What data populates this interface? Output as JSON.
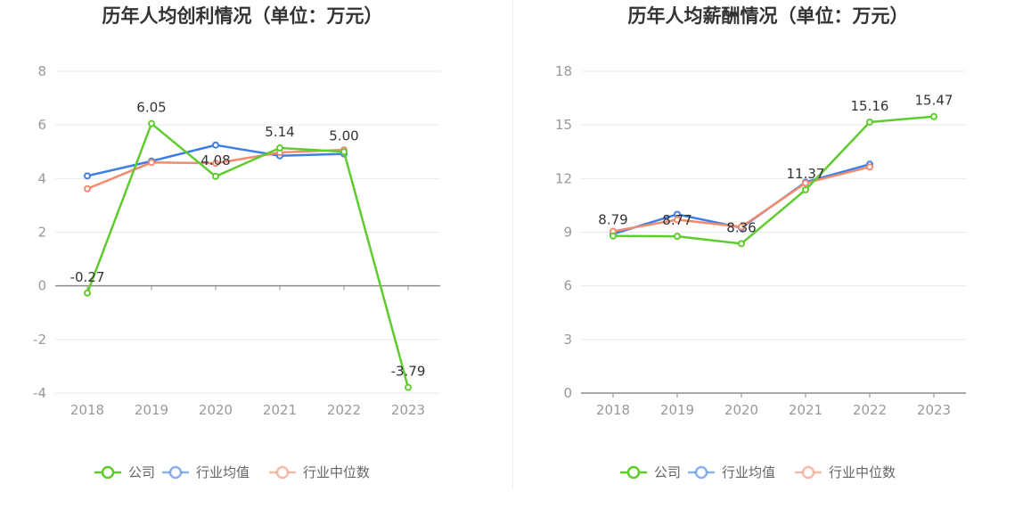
{
  "legend": {
    "items": [
      {
        "label": "公司",
        "color": "#5fcc2e"
      },
      {
        "label": "行业均值",
        "color": "#3d7fe6"
      },
      {
        "label": "行业中位数",
        "color": "#f28c6f"
      }
    ]
  },
  "chart_data": [
    {
      "type": "line",
      "title": "历年人均创利情况（单位：万元）",
      "categories": [
        "2018",
        "2019",
        "2020",
        "2021",
        "2022",
        "2023"
      ],
      "ylim": [
        -4,
        8
      ],
      "yticks": [
        8,
        6,
        4,
        2,
        0,
        -2,
        -4
      ],
      "series": [
        {
          "name": "公司",
          "color": "#5fcc2e",
          "values": [
            -0.27,
            6.05,
            4.08,
            5.14,
            5.0,
            -3.79
          ],
          "labels": [
            "-0.27",
            "6.05",
            "4.08",
            "5.14",
            "5.00",
            "-3.79"
          ]
        },
        {
          "name": "行业均值",
          "color": "#3d7fe6",
          "values": [
            4.1,
            4.65,
            5.25,
            4.85,
            4.92,
            null
          ]
        },
        {
          "name": "行业中位数",
          "color": "#f28c6f",
          "values": [
            3.62,
            4.6,
            4.57,
            4.97,
            5.07,
            null
          ]
        }
      ]
    },
    {
      "type": "line",
      "title": "历年人均薪酬情况（单位：万元）",
      "categories": [
        "2018",
        "2019",
        "2020",
        "2021",
        "2022",
        "2023"
      ],
      "ylim": [
        0,
        18
      ],
      "yticks": [
        18,
        15,
        12,
        9,
        6,
        3,
        0
      ],
      "series": [
        {
          "name": "公司",
          "color": "#5fcc2e",
          "values": [
            8.79,
            8.77,
            8.36,
            11.37,
            15.16,
            15.47
          ],
          "labels": [
            "8.79",
            "8.77",
            "8.36",
            "11.37",
            "15.16",
            "15.47"
          ]
        },
        {
          "name": "行业均值",
          "color": "#3d7fe6",
          "values": [
            8.9,
            10.0,
            9.25,
            11.8,
            12.8,
            null
          ]
        },
        {
          "name": "行业中位数",
          "color": "#f28c6f",
          "values": [
            9.05,
            9.7,
            9.3,
            11.75,
            12.65,
            null
          ]
        }
      ]
    }
  ]
}
